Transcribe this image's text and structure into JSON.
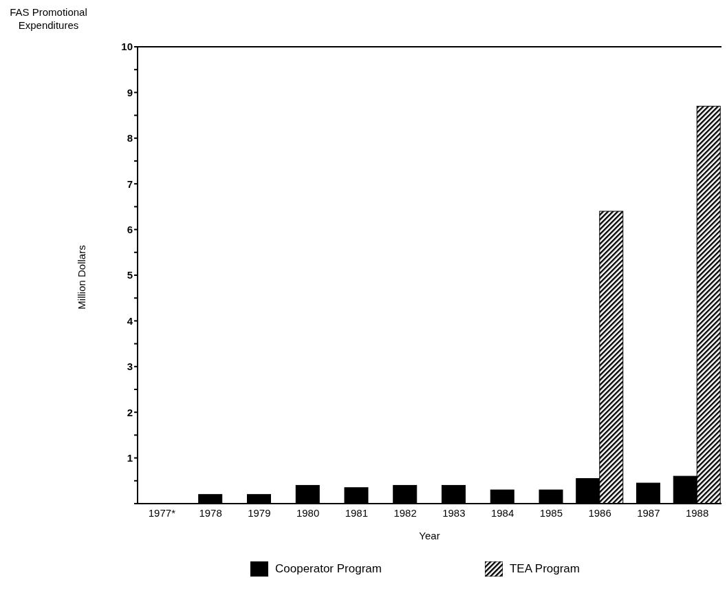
{
  "chart_data": {
    "type": "bar",
    "title": "FAS Promotional Expenditures",
    "xlabel": "Year",
    "ylabel": "Million Dollars",
    "categories": [
      "1977*",
      "1978",
      "1979",
      "1980",
      "1981",
      "1982",
      "1983",
      "1984",
      "1985",
      "1986",
      "1987",
      "1988"
    ],
    "series": [
      {
        "name": "Cooperator Program",
        "color": "#000000",
        "values": [
          0,
          0.2,
          0.2,
          0.4,
          0.35,
          0.4,
          0.4,
          0.3,
          0.3,
          0.55,
          0.45,
          0.6
        ]
      },
      {
        "name": "TEA Program",
        "color": "#000000",
        "values": [
          null,
          null,
          null,
          null,
          null,
          null,
          null,
          null,
          null,
          6.4,
          null,
          8.7
        ]
      }
    ],
    "ylim": [
      0,
      10
    ],
    "yticks": [
      {
        "value": 0,
        "label": null
      },
      {
        "value": 0.5,
        "label": null
      },
      1,
      {
        "value": 1.5,
        "label": null
      },
      2,
      {
        "value": 2.5,
        "label": null
      },
      3,
      {
        "value": 3.5,
        "label": null
      },
      4,
      {
        "value": 4.5,
        "label": null
      },
      5,
      {
        "value": 5.5,
        "label": null
      },
      6,
      {
        "value": 6.5,
        "label": null
      },
      7,
      {
        "value": 7.5,
        "label": null
      },
      8,
      {
        "value": 8.5,
        "label": null
      },
      9,
      {
        "value": 9.5,
        "label": null
      },
      10
    ],
    "grid": false,
    "legend": "bottom"
  }
}
